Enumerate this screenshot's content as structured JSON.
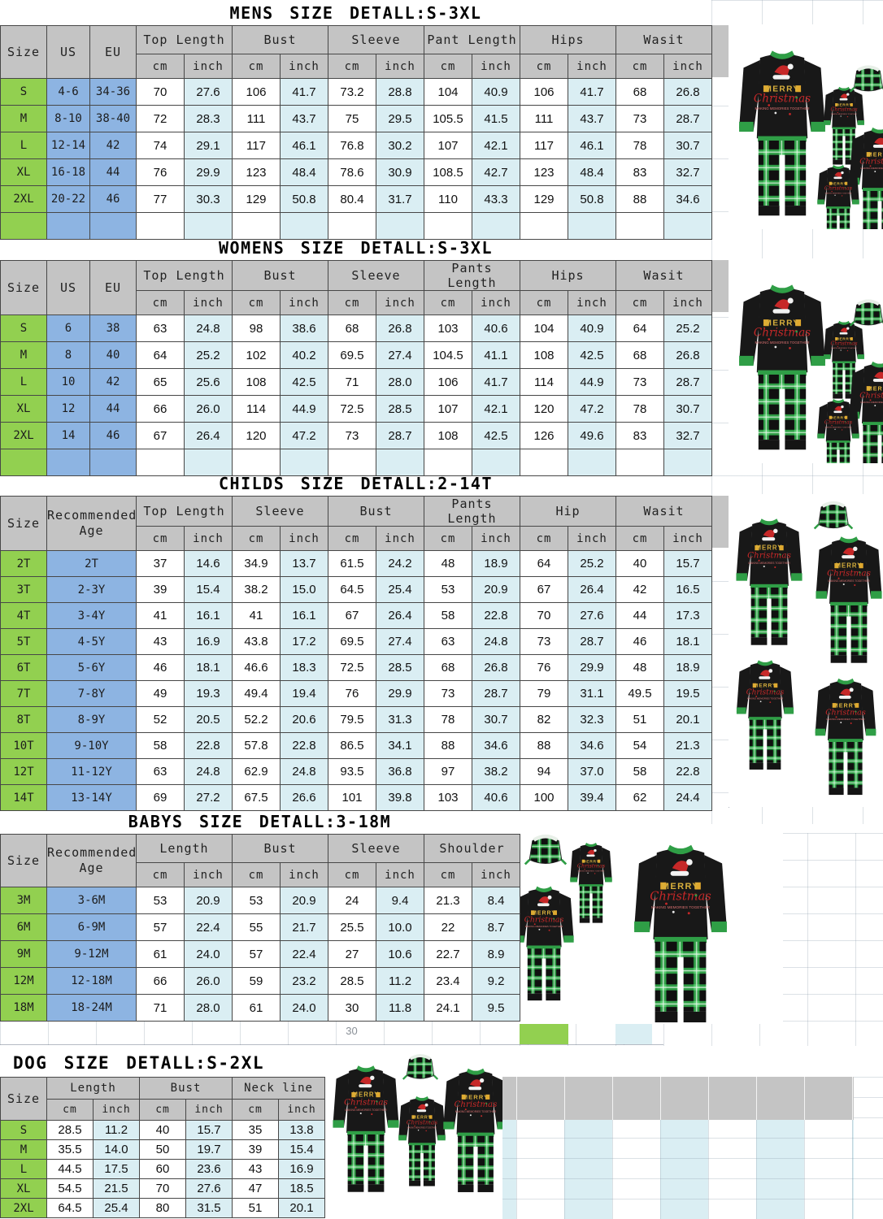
{
  "document": {
    "type": "size-chart",
    "units": [
      "cm",
      "inch"
    ]
  },
  "colors": {
    "header_gray": "#c4c4c4",
    "size_green": "#92d050",
    "us_eu_blue": "#8db4e2",
    "inch_light_blue": "#daeef3",
    "plaid_green": "#2f9e46",
    "pajama_black": "#181818",
    "print_red": "#c62828",
    "print_gold": "#d9b03c"
  },
  "artifacts": {
    "stray_value": "30"
  },
  "photos": [
    {
      "id": "mens",
      "description": "family christmas pajamas black top green plaid pants"
    },
    {
      "id": "womens",
      "description": "family christmas pajamas black top green plaid pants"
    },
    {
      "id": "childs",
      "description": "family christmas pajamas black top green plaid pants"
    },
    {
      "id": "babys",
      "description": "family christmas pajamas black top green plaid pants"
    },
    {
      "id": "dog",
      "description": "family christmas pajamas with dog bandana"
    }
  ],
  "sections": [
    {
      "id": "mens",
      "title": "MENS SIZE DETALL:S-3XL",
      "left_headers": [
        "Size",
        "US",
        "EU"
      ],
      "sub_headers": [
        "cm",
        "inch"
      ],
      "groups": [
        "Top Length",
        "Bust",
        "Sleeve",
        "Pant Length",
        "Hips",
        "Wasit"
      ],
      "partial_row": true,
      "rows": [
        {
          "size": "S",
          "left": [
            "4-6",
            "34-36"
          ],
          "v": [
            "70",
            "27.6",
            "106",
            "41.7",
            "73.2",
            "28.8",
            "104",
            "40.9",
            "106",
            "41.7",
            "68",
            "26.8"
          ]
        },
        {
          "size": "M",
          "left": [
            "8-10",
            "38-40"
          ],
          "v": [
            "72",
            "28.3",
            "111",
            "43.7",
            "75",
            "29.5",
            "105.5",
            "41.5",
            "111",
            "43.7",
            "73",
            "28.7"
          ]
        },
        {
          "size": "L",
          "left": [
            "12-14",
            "42"
          ],
          "v": [
            "74",
            "29.1",
            "117",
            "46.1",
            "76.8",
            "30.2",
            "107",
            "42.1",
            "117",
            "46.1",
            "78",
            "30.7"
          ]
        },
        {
          "size": "XL",
          "left": [
            "16-18",
            "44"
          ],
          "v": [
            "76",
            "29.9",
            "123",
            "48.4",
            "78.6",
            "30.9",
            "108.5",
            "42.7",
            "123",
            "48.4",
            "83",
            "32.7"
          ]
        },
        {
          "size": "2XL",
          "left": [
            "20-22",
            "46"
          ],
          "v": [
            "77",
            "30.3",
            "129",
            "50.8",
            "80.4",
            "31.7",
            "110",
            "43.3",
            "129",
            "50.8",
            "88",
            "34.6"
          ]
        }
      ]
    },
    {
      "id": "womens",
      "title": "WOMENS SIZE DETALL:S-3XL",
      "left_headers": [
        "Size",
        "US",
        "EU"
      ],
      "sub_headers": [
        "cm",
        "inch"
      ],
      "groups": [
        "Top Length",
        "Bust",
        "Sleeve",
        "Pants Length",
        "Hips",
        "Wasit"
      ],
      "partial_row": true,
      "rows": [
        {
          "size": "S",
          "left": [
            "6",
            "38"
          ],
          "v": [
            "63",
            "24.8",
            "98",
            "38.6",
            "68",
            "26.8",
            "103",
            "40.6",
            "104",
            "40.9",
            "64",
            "25.2"
          ]
        },
        {
          "size": "M",
          "left": [
            "8",
            "40"
          ],
          "v": [
            "64",
            "25.2",
            "102",
            "40.2",
            "69.5",
            "27.4",
            "104.5",
            "41.1",
            "108",
            "42.5",
            "68",
            "26.8"
          ]
        },
        {
          "size": "L",
          "left": [
            "10",
            "42"
          ],
          "v": [
            "65",
            "25.6",
            "108",
            "42.5",
            "71",
            "28.0",
            "106",
            "41.7",
            "114",
            "44.9",
            "73",
            "28.7"
          ]
        },
        {
          "size": "XL",
          "left": [
            "12",
            "44"
          ],
          "v": [
            "66",
            "26.0",
            "114",
            "44.9",
            "72.5",
            "28.5",
            "107",
            "42.1",
            "120",
            "47.2",
            "78",
            "30.7"
          ]
        },
        {
          "size": "2XL",
          "left": [
            "14",
            "46"
          ],
          "v": [
            "67",
            "26.4",
            "120",
            "47.2",
            "73",
            "28.7",
            "108",
            "42.5",
            "126",
            "49.6",
            "83",
            "32.7"
          ]
        }
      ]
    },
    {
      "id": "childs",
      "title": "CHILDS SIZE DETALL:2-14T",
      "left_headers": [
        "Size",
        "Recommended Age"
      ],
      "sub_headers": [
        "cm",
        "inch"
      ],
      "groups": [
        "Top Length",
        "Sleeve",
        "Bust",
        "Pants Length",
        "Hip",
        "Wasit"
      ],
      "partial_row": false,
      "rows": [
        {
          "size": "2T",
          "left": [
            "2T"
          ],
          "v": [
            "37",
            "14.6",
            "34.9",
            "13.7",
            "61.5",
            "24.2",
            "48",
            "18.9",
            "64",
            "25.2",
            "40",
            "15.7"
          ]
        },
        {
          "size": "3T",
          "left": [
            "2-3Y"
          ],
          "v": [
            "39",
            "15.4",
            "38.2",
            "15.0",
            "64.5",
            "25.4",
            "53",
            "20.9",
            "67",
            "26.4",
            "42",
            "16.5"
          ]
        },
        {
          "size": "4T",
          "left": [
            "3-4Y"
          ],
          "v": [
            "41",
            "16.1",
            "41",
            "16.1",
            "67",
            "26.4",
            "58",
            "22.8",
            "70",
            "27.6",
            "44",
            "17.3"
          ]
        },
        {
          "size": "5T",
          "left": [
            "4-5Y"
          ],
          "v": [
            "43",
            "16.9",
            "43.8",
            "17.2",
            "69.5",
            "27.4",
            "63",
            "24.8",
            "73",
            "28.7",
            "46",
            "18.1"
          ]
        },
        {
          "size": "6T",
          "left": [
            "5-6Y"
          ],
          "v": [
            "46",
            "18.1",
            "46.6",
            "18.3",
            "72.5",
            "28.5",
            "68",
            "26.8",
            "76",
            "29.9",
            "48",
            "18.9"
          ]
        },
        {
          "size": "7T",
          "left": [
            "7-8Y"
          ],
          "v": [
            "49",
            "19.3",
            "49.4",
            "19.4",
            "76",
            "29.9",
            "73",
            "28.7",
            "79",
            "31.1",
            "49.5",
            "19.5"
          ]
        },
        {
          "size": "8T",
          "left": [
            "8-9Y"
          ],
          "v": [
            "52",
            "20.5",
            "52.2",
            "20.6",
            "79.5",
            "31.3",
            "78",
            "30.7",
            "82",
            "32.3",
            "51",
            "20.1"
          ]
        },
        {
          "size": "10T",
          "left": [
            "9-10Y"
          ],
          "v": [
            "58",
            "22.8",
            "57.8",
            "22.8",
            "86.5",
            "34.1",
            "88",
            "34.6",
            "88",
            "34.6",
            "54",
            "21.3"
          ]
        },
        {
          "size": "12T",
          "left": [
            "11-12Y"
          ],
          "v": [
            "63",
            "24.8",
            "62.9",
            "24.8",
            "93.5",
            "36.8",
            "97",
            "38.2",
            "94",
            "37.0",
            "58",
            "22.8"
          ]
        },
        {
          "size": "14T",
          "left": [
            "13-14Y"
          ],
          "v": [
            "69",
            "27.2",
            "67.5",
            "26.6",
            "101",
            "39.8",
            "103",
            "40.6",
            "100",
            "39.4",
            "62",
            "24.4"
          ]
        }
      ]
    },
    {
      "id": "babys",
      "title": "BABYS SIZE DETALL:3-18M",
      "left_headers": [
        "Size",
        "Recommended Age"
      ],
      "sub_headers": [
        "cm",
        "inch"
      ],
      "groups": [
        "Length",
        "Bust",
        "Sleeve",
        "Shoulder"
      ],
      "partial_row": false,
      "rows": [
        {
          "size": "3M",
          "left": [
            "3-6M"
          ],
          "v": [
            "53",
            "20.9",
            "53",
            "20.9",
            "24",
            "9.4",
            "21.3",
            "8.4"
          ]
        },
        {
          "size": "6M",
          "left": [
            "6-9M"
          ],
          "v": [
            "57",
            "22.4",
            "55",
            "21.7",
            "25.5",
            "10.0",
            "22",
            "8.7"
          ]
        },
        {
          "size": "9M",
          "left": [
            "9-12M"
          ],
          "v": [
            "61",
            "24.0",
            "57",
            "22.4",
            "27",
            "10.6",
            "22.7",
            "8.9"
          ]
        },
        {
          "size": "12M",
          "left": [
            "12-18M"
          ],
          "v": [
            "66",
            "26.0",
            "59",
            "23.2",
            "28.5",
            "11.2",
            "23.4",
            "9.2"
          ]
        },
        {
          "size": "18M",
          "left": [
            "18-24M"
          ],
          "v": [
            "71",
            "28.0",
            "61",
            "24.0",
            "30",
            "11.8",
            "24.1",
            "9.5"
          ]
        }
      ]
    },
    {
      "id": "dog",
      "title": "DOG SIZE DETALL:S-2XL",
      "left_headers": [
        "Size"
      ],
      "sub_headers": [
        "cm",
        "inch"
      ],
      "groups": [
        "Length",
        "Bust",
        "Neck line"
      ],
      "partial_row": false,
      "rows": [
        {
          "size": "S",
          "left": [],
          "v": [
            "28.5",
            "11.2",
            "40",
            "15.7",
            "35",
            "13.8"
          ]
        },
        {
          "size": "M",
          "left": [],
          "v": [
            "35.5",
            "14.0",
            "50",
            "19.7",
            "39",
            "15.4"
          ]
        },
        {
          "size": "L",
          "left": [],
          "v": [
            "44.5",
            "17.5",
            "60",
            "23.6",
            "43",
            "16.9"
          ]
        },
        {
          "size": "XL",
          "left": [],
          "v": [
            "54.5",
            "21.5",
            "70",
            "27.6",
            "47",
            "18.5"
          ]
        },
        {
          "size": "2XL",
          "left": [],
          "v": [
            "64.5",
            "25.4",
            "80",
            "31.5",
            "51",
            "20.1"
          ]
        }
      ]
    }
  ]
}
